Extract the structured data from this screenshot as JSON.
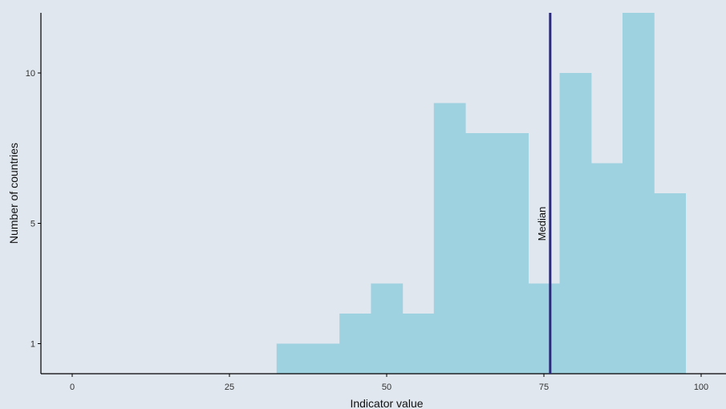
{
  "chart_data": {
    "type": "histogram",
    "bin_width": 5,
    "bins": [
      {
        "x0": 32.5,
        "x1": 37.5,
        "count": 1
      },
      {
        "x0": 37.5,
        "x1": 42.5,
        "count": 1
      },
      {
        "x0": 42.5,
        "x1": 47.5,
        "count": 2
      },
      {
        "x0": 47.5,
        "x1": 52.5,
        "count": 3
      },
      {
        "x0": 52.5,
        "x1": 57.5,
        "count": 2
      },
      {
        "x0": 57.5,
        "x1": 62.5,
        "count": 9
      },
      {
        "x0": 62.5,
        "x1": 67.5,
        "count": 8
      },
      {
        "x0": 67.5,
        "x1": 72.5,
        "count": 8
      },
      {
        "x0": 72.5,
        "x1": 77.5,
        "count": 3
      },
      {
        "x0": 77.5,
        "x1": 82.5,
        "count": 10
      },
      {
        "x0": 82.5,
        "x1": 87.5,
        "count": 7
      },
      {
        "x0": 87.5,
        "x1": 92.5,
        "count": 12
      },
      {
        "x0": 92.5,
        "x1": 97.5,
        "count": 6
      }
    ],
    "median": 76,
    "median_label": "Median",
    "xlabel": "Indicator value",
    "ylabel": "Number of countries",
    "x_ticks": [
      0,
      25,
      50,
      75,
      100
    ],
    "y_ticks": [
      1,
      5,
      10
    ],
    "xlim": [
      -5,
      103
    ],
    "ylim": [
      0,
      12
    ],
    "grid": false,
    "colors": {
      "background": "#e0e7ee",
      "bars": "#9fd2e1",
      "median_line": "#2b2a7a",
      "axis": "#000000"
    }
  }
}
